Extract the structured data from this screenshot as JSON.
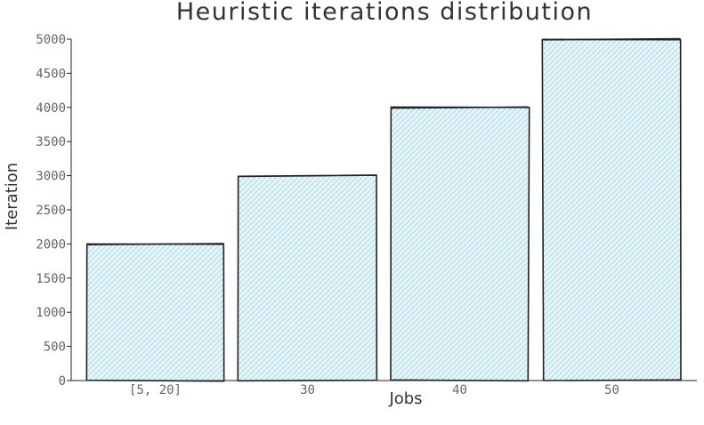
{
  "chart_data": {
    "type": "bar",
    "title": "Heuristic iterations distribution",
    "xlabel": "Jobs",
    "ylabel": "Iteration",
    "categories": [
      "[5, 20]",
      "30",
      "40",
      "50"
    ],
    "values": [
      2000,
      3000,
      4000,
      5000
    ],
    "ylim": [
      0,
      5000
    ],
    "yticks": [
      0,
      500,
      1000,
      1500,
      2000,
      2500,
      3000,
      3500,
      4000,
      4500,
      5000
    ],
    "grid": false,
    "legend": "none",
    "colors": {
      "bar_fill": "#a6dcef",
      "bar_outline": "#222222",
      "hatch": "#7ec8e3"
    }
  }
}
